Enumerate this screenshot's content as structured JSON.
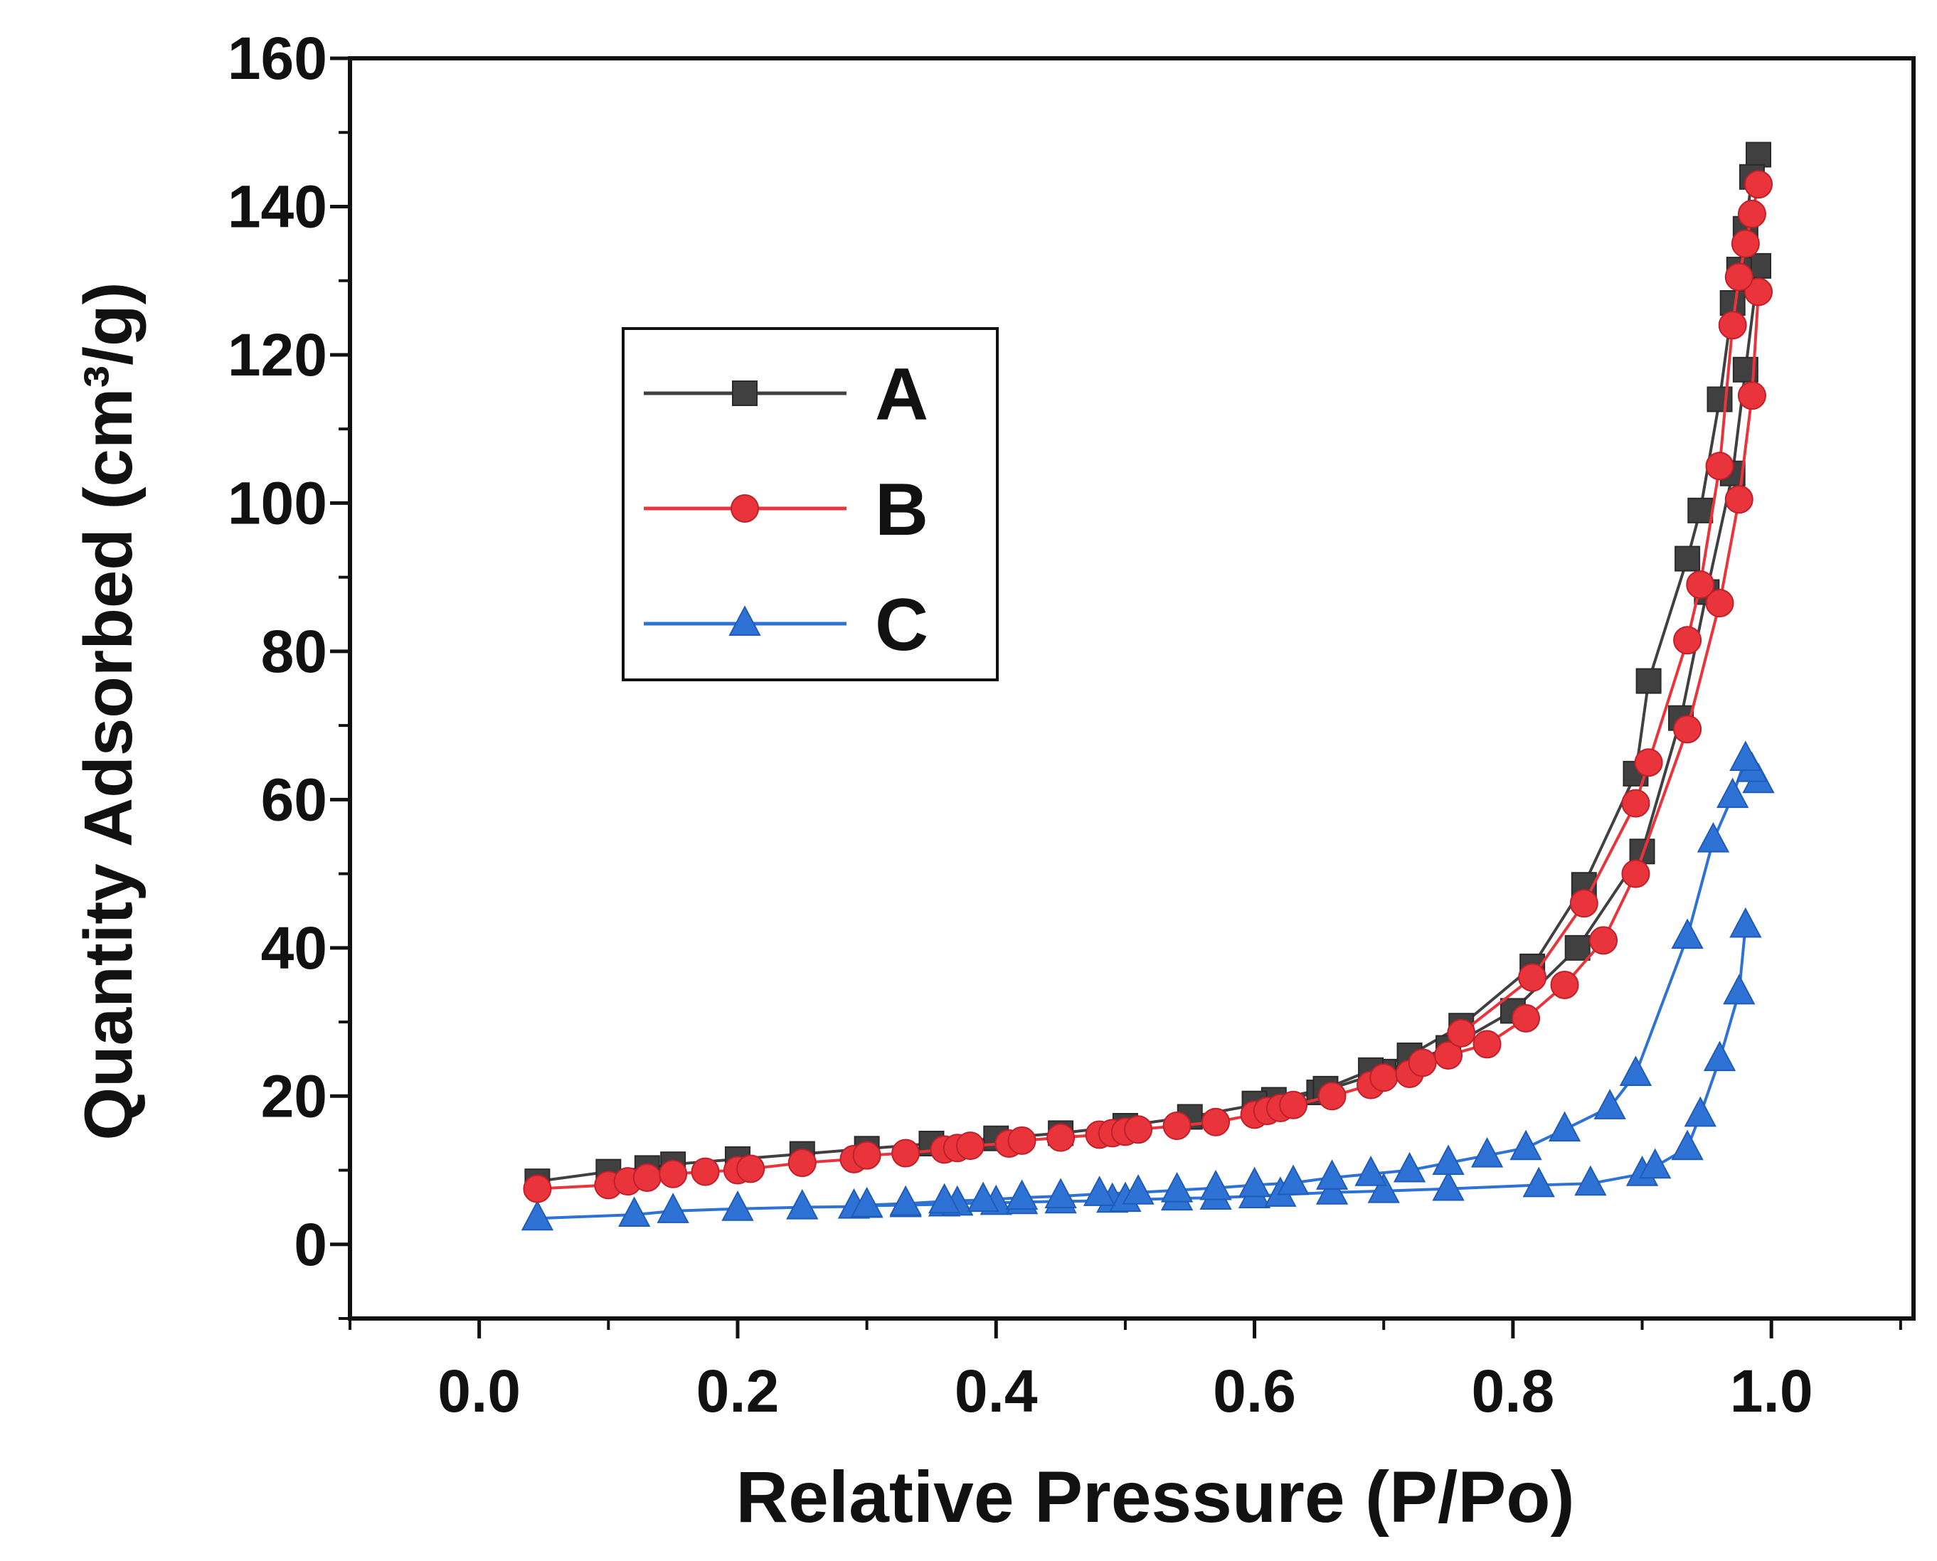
{
  "chart_data": {
    "type": "line",
    "title": "",
    "xlabel": "Relative Pressure (P/Po)",
    "ylabel": "Quantity Adsorbed (cm³/g)",
    "xlim": [
      -0.1,
      1.11
    ],
    "ylim": [
      -10,
      160
    ],
    "x_ticks": [
      "0.0",
      "0.2",
      "0.4",
      "0.6",
      "0.8",
      "1.0"
    ],
    "y_ticks": [
      "0",
      "20",
      "40",
      "60",
      "80",
      "100",
      "120",
      "140",
      "160"
    ],
    "legend_position": "upper-left",
    "series": [
      {
        "name": "A",
        "color": "#404040",
        "marker": "square",
        "adsorption": {
          "x": [
            0.045,
            0.1,
            0.13,
            0.15,
            0.2,
            0.25,
            0.3,
            0.35,
            0.4,
            0.45,
            0.5,
            0.55,
            0.6,
            0.65,
            0.7,
            0.75,
            0.8,
            0.85,
            0.9,
            0.93,
            0.95,
            0.97,
            0.98,
            0.99
          ],
          "y": [
            8.5,
            9.8,
            10.3,
            10.8,
            11.5,
            12.2,
            12.9,
            13.6,
            14.3,
            15.0,
            16.0,
            17.2,
            18.8,
            20.5,
            23.3,
            26.5,
            31.5,
            40.0,
            53.0,
            71.0,
            88.0,
            104.0,
            118.0,
            132.0
          ]
        },
        "desorption": {
          "x": [
            0.99,
            0.985,
            0.98,
            0.975,
            0.97,
            0.96,
            0.945,
            0.935,
            0.905,
            0.895,
            0.855,
            0.815,
            0.76,
            0.72,
            0.69,
            0.655,
            0.615,
            0.6
          ],
          "y": [
            147.0,
            144.0,
            137.0,
            131.5,
            127.0,
            114.0,
            99.0,
            92.5,
            76.0,
            63.5,
            48.5,
            37.5,
            29.5,
            25.5,
            23.5,
            21.0,
            19.5,
            19.0
          ]
        }
      },
      {
        "name": "B",
        "color": "#e8343a",
        "marker": "circle",
        "adsorption": {
          "x": [
            0.045,
            0.1,
            0.115,
            0.13,
            0.15,
            0.175,
            0.2,
            0.21,
            0.25,
            0.29,
            0.3,
            0.33,
            0.36,
            0.37,
            0.38,
            0.41,
            0.42,
            0.45,
            0.48,
            0.49,
            0.5,
            0.51,
            0.54,
            0.57,
            0.6,
            0.61,
            0.62,
            0.63,
            0.66,
            0.69,
            0.7,
            0.72,
            0.73,
            0.75,
            0.78,
            0.81,
            0.84,
            0.87,
            0.895,
            0.935,
            0.96,
            0.975,
            0.985,
            0.99
          ],
          "y": [
            7.5,
            8.0,
            8.5,
            9.0,
            9.5,
            9.8,
            10.0,
            10.2,
            11.0,
            11.5,
            12.0,
            12.3,
            12.8,
            13.0,
            13.3,
            13.6,
            14.0,
            14.4,
            14.8,
            15.0,
            15.2,
            15.5,
            16.0,
            16.5,
            17.5,
            18.0,
            18.4,
            18.8,
            20.0,
            21.5,
            22.5,
            23.0,
            24.5,
            25.5,
            27.0,
            30.5,
            35.0,
            41.0,
            50.0,
            69.5,
            86.5,
            100.5,
            114.5,
            128.5
          ]
        },
        "desorption": {
          "x": [
            0.99,
            0.985,
            0.98,
            0.975,
            0.97,
            0.96,
            0.945,
            0.935,
            0.905,
            0.895,
            0.855,
            0.815,
            0.76
          ],
          "y": [
            143.0,
            139.0,
            135.0,
            130.5,
            124.0,
            105.0,
            89.0,
            81.5,
            65.0,
            59.5,
            46.0,
            36.0,
            28.5
          ]
        }
      },
      {
        "name": "C",
        "color": "#2f72d6",
        "marker": "triangle",
        "adsorption": {
          "x": [
            0.045,
            0.12,
            0.15,
            0.2,
            0.25,
            0.29,
            0.3,
            0.33,
            0.36,
            0.37,
            0.4,
            0.42,
            0.45,
            0.49,
            0.5,
            0.54,
            0.57,
            0.6,
            0.62,
            0.66,
            0.7,
            0.75,
            0.82,
            0.86,
            0.9,
            0.91,
            0.935,
            0.945,
            0.96,
            0.975,
            0.98
          ],
          "y": [
            3.5,
            4.0,
            4.5,
            4.8,
            5.0,
            5.1,
            5.2,
            5.3,
            5.4,
            5.5,
            5.6,
            5.7,
            5.8,
            5.9,
            6.0,
            6.2,
            6.3,
            6.5,
            6.7,
            7.0,
            7.2,
            7.5,
            8.0,
            8.2,
            9.5,
            10.5,
            13.0,
            17.5,
            25.0,
            34.0,
            43.0
          ]
        },
        "desorption": {
          "x": [
            0.99,
            0.985,
            0.98,
            0.97,
            0.955,
            0.935,
            0.895,
            0.875,
            0.84,
            0.81,
            0.78,
            0.75,
            0.72,
            0.69,
            0.66,
            0.63,
            0.6,
            0.57,
            0.54,
            0.51,
            0.48,
            0.45,
            0.42,
            0.39,
            0.36,
            0.33,
            0.3
          ],
          "y": [
            62.5,
            64.0,
            65.5,
            60.5,
            54.5,
            41.5,
            23.0,
            18.5,
            15.5,
            13.0,
            12.0,
            11.0,
            10.0,
            9.5,
            9.0,
            8.3,
            8.0,
            7.6,
            7.3,
            7.0,
            6.8,
            6.5,
            6.3,
            6.0,
            5.8,
            5.5,
            5.3
          ]
        }
      }
    ]
  }
}
